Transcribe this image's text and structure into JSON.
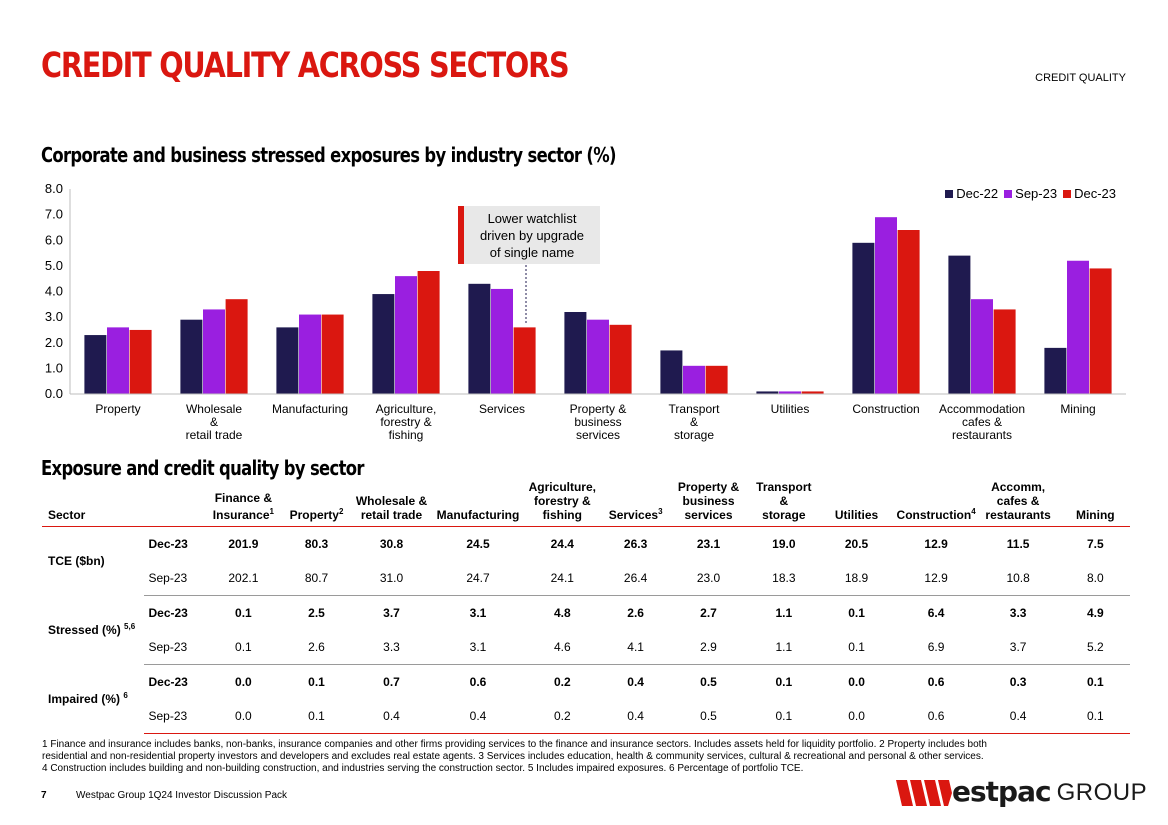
{
  "header": {
    "title": "CREDIT QUALITY ACROSS SECTORS",
    "section": "CREDIT QUALITY"
  },
  "chart_title": "Corporate and business stressed exposures by industry sector (%)",
  "callout": {
    "line1": "Lower watchlist",
    "line2": "driven by upgrade",
    "line3": "of single name"
  },
  "legend": [
    {
      "label": "Dec-22",
      "color": "#1f1a4f"
    },
    {
      "label": "Sep-23",
      "color": "#9a1fe0"
    },
    {
      "label": "Dec-23",
      "color": "#da1710"
    }
  ],
  "chart_data": {
    "type": "bar",
    "title": "Corporate and business stressed exposures by industry sector (%)",
    "categories": [
      [
        "Property"
      ],
      [
        "Wholesale",
        "&",
        "retail trade"
      ],
      [
        "Manufacturing"
      ],
      [
        "Agriculture,",
        "forestry &",
        "fishing"
      ],
      [
        "Services"
      ],
      [
        "Property &",
        "business",
        "services"
      ],
      [
        "Transport",
        "&",
        "storage"
      ],
      [
        "Utilities"
      ],
      [
        "Construction"
      ],
      [
        "Accommodation",
        "cafes &",
        "restaurants"
      ],
      [
        "Mining"
      ]
    ],
    "series": [
      {
        "name": "Dec-22",
        "color": "#1f1a4f",
        "values": [
          2.3,
          2.9,
          2.6,
          3.9,
          4.3,
          3.2,
          1.7,
          0.1,
          5.9,
          5.4,
          1.8
        ]
      },
      {
        "name": "Sep-23",
        "color": "#9a1fe0",
        "values": [
          2.6,
          3.3,
          3.1,
          4.6,
          4.1,
          2.9,
          1.1,
          0.1,
          6.9,
          3.7,
          5.2
        ]
      },
      {
        "name": "Dec-23",
        "color": "#da1710",
        "values": [
          2.5,
          3.7,
          3.1,
          4.8,
          2.6,
          2.7,
          1.1,
          0.1,
          6.4,
          3.3,
          4.9
        ]
      }
    ],
    "ylim": [
      0,
      8
    ],
    "yticks": [
      "0.0",
      "1.0",
      "2.0",
      "3.0",
      "4.0",
      "5.0",
      "6.0",
      "7.0",
      "8.0"
    ],
    "xlabel": "",
    "ylabel": "",
    "legend_position": "top-right",
    "grid": false
  },
  "table_title": "Exposure and credit quality by sector",
  "table": {
    "sector_header": "Sector",
    "columns": [
      {
        "lines": [
          "Finance &",
          "Insurance"
        ],
        "sup": "1"
      },
      {
        "lines": [
          "Property"
        ],
        "sup": "2"
      },
      {
        "lines": [
          "Wholesale &",
          "retail trade"
        ],
        "sup": ""
      },
      {
        "lines": [
          "Manufacturing"
        ],
        "sup": ""
      },
      {
        "lines": [
          "Agriculture,",
          "forestry &",
          "fishing"
        ],
        "sup": ""
      },
      {
        "lines": [
          "Services"
        ],
        "sup": "3"
      },
      {
        "lines": [
          "Property &",
          "business",
          "services"
        ],
        "sup": ""
      },
      {
        "lines": [
          "Transport &",
          "storage"
        ],
        "sup": ""
      },
      {
        "lines": [
          "Utilities"
        ],
        "sup": ""
      },
      {
        "lines": [
          "Construction"
        ],
        "sup": "4"
      },
      {
        "lines": [
          "Accomm,",
          "cafes &",
          "restaurants"
        ],
        "sup": ""
      },
      {
        "lines": [
          "Mining"
        ],
        "sup": ""
      }
    ],
    "groups": [
      {
        "label": "TCE ($bn)",
        "sup": "",
        "rows": [
          {
            "period": "Dec-23",
            "values": [
              "201.9",
              "80.3",
              "30.8",
              "24.5",
              "24.4",
              "26.3",
              "23.1",
              "19.0",
              "20.5",
              "12.9",
              "11.5",
              "7.5"
            ]
          },
          {
            "period": "Sep-23",
            "values": [
              "202.1",
              "80.7",
              "31.0",
              "24.7",
              "24.1",
              "26.4",
              "23.0",
              "18.3",
              "18.9",
              "12.9",
              "10.8",
              "8.0"
            ]
          }
        ]
      },
      {
        "label": "Stressed (%)",
        "sup": "5,6",
        "rows": [
          {
            "period": "Dec-23",
            "values": [
              "0.1",
              "2.5",
              "3.7",
              "3.1",
              "4.8",
              "2.6",
              "2.7",
              "1.1",
              "0.1",
              "6.4",
              "3.3",
              "4.9"
            ]
          },
          {
            "period": "Sep-23",
            "values": [
              "0.1",
              "2.6",
              "3.3",
              "3.1",
              "4.6",
              "4.1",
              "2.9",
              "1.1",
              "0.1",
              "6.9",
              "3.7",
              "5.2"
            ]
          }
        ]
      },
      {
        "label": "Impaired (%)",
        "sup": "6",
        "rows": [
          {
            "period": "Dec-23",
            "values": [
              "0.0",
              "0.1",
              "0.7",
              "0.6",
              "0.2",
              "0.4",
              "0.5",
              "0.1",
              "0.0",
              "0.6",
              "0.3",
              "0.1"
            ]
          },
          {
            "period": "Sep-23",
            "values": [
              "0.0",
              "0.1",
              "0.4",
              "0.4",
              "0.2",
              "0.4",
              "0.5",
              "0.1",
              "0.0",
              "0.6",
              "0.4",
              "0.1"
            ]
          }
        ]
      }
    ]
  },
  "footnotes": {
    "line1": "1 Finance and insurance includes banks, non-banks, insurance companies and other firms providing services to the finance and insurance sectors. Includes assets held for liquidity portfolio. 2 Property includes both",
    "line2": "residential and non-residential property investors and developers and excludes real estate agents. 3 Services includes education, health & community services, cultural & recreational and personal & other services.",
    "line3": "4 Construction includes building and non-building construction, and industries serving the construction sector. 5 Includes impaired exposures. 6 Percentage of portfolio TCE."
  },
  "footer": {
    "page": "7",
    "doc": "Westpac Group 1Q24 Investor Discussion Pack",
    "logo_brand": "estpac",
    "logo_group": "GROUP"
  }
}
